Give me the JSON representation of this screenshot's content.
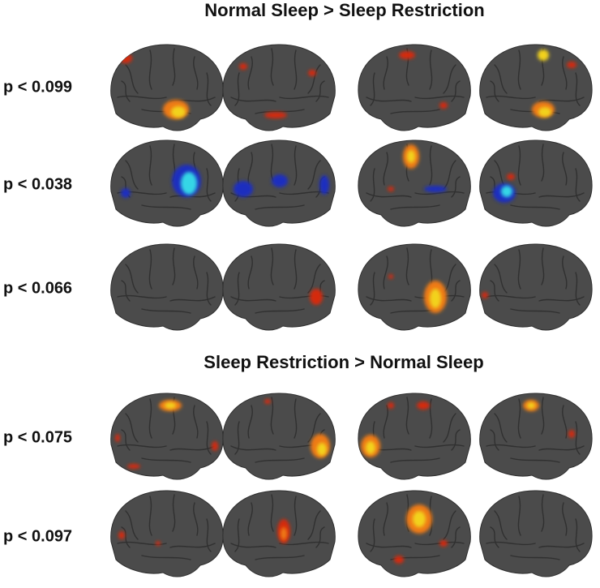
{
  "sections": [
    {
      "title": "Normal Sleep > Sleep Restriction",
      "rows": [
        {
          "label": "p < 0.099"
        },
        {
          "label": "p < 0.038"
        },
        {
          "label": "p < 0.066"
        }
      ]
    },
    {
      "title": "Sleep Restriction > Normal Sleep",
      "rows": [
        {
          "label": "p < 0.075"
        },
        {
          "label": "p < 0.097"
        }
      ]
    }
  ]
}
